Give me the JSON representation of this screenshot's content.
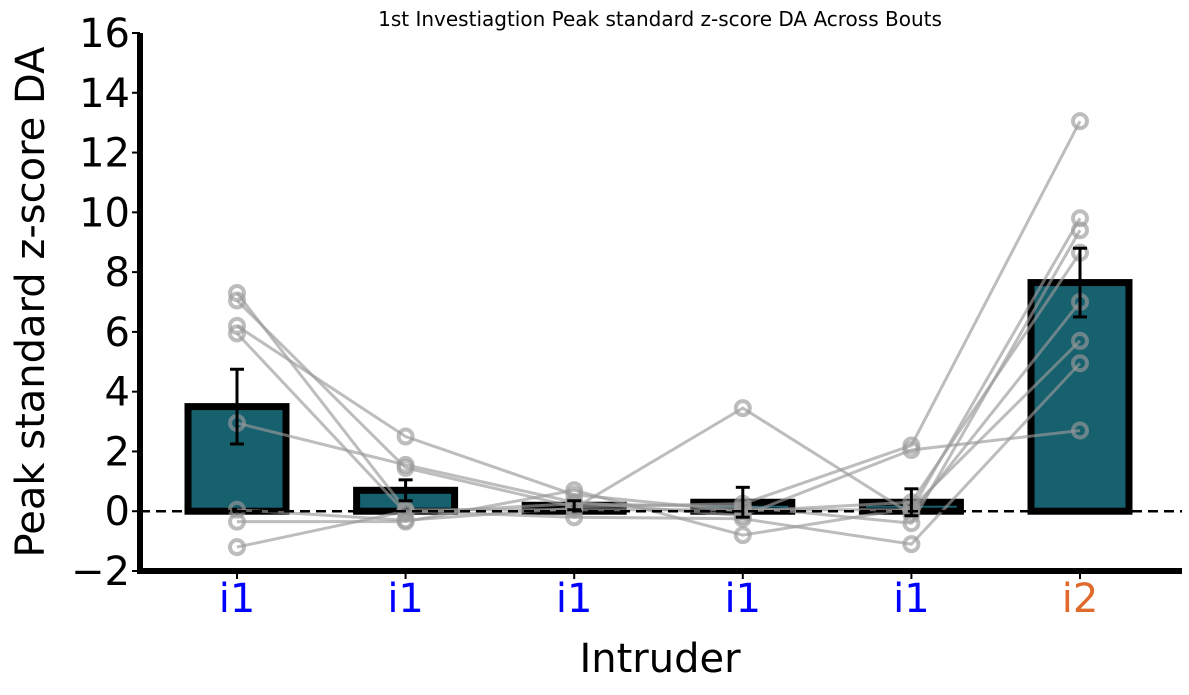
{
  "chart_data": {
    "type": "bar",
    "title": "1st Investiagtion Peak standard z-score DA Across Bouts",
    "xlabel": "Intruder",
    "ylabel": "Peak standard z-score DA",
    "ylim": [
      -2,
      16
    ],
    "yticks": [
      -2,
      0,
      2,
      4,
      6,
      8,
      10,
      12,
      14,
      16
    ],
    "ytick_labels": [
      "−2",
      "0",
      "2",
      "4",
      "6",
      "8",
      "10",
      "12",
      "14",
      "16"
    ],
    "categories": [
      "i1",
      "i1",
      "i1",
      "i1",
      "i1",
      "i2"
    ],
    "category_colors": [
      "#0000ff",
      "#0000ff",
      "#0000ff",
      "#0000ff",
      "#0000ff",
      "#e06a2c"
    ],
    "values": [
      3.5,
      0.7,
      0.2,
      0.3,
      0.3,
      7.65
    ],
    "errors": [
      1.25,
      0.35,
      0.15,
      0.5,
      0.45,
      1.15
    ],
    "bar_color": "#17606e",
    "bar_edge_color": "#000000",
    "zero_line": "dashed",
    "subjects": [
      {
        "values": [
          7.3,
          0.05,
          0.05,
          0.05,
          0.05,
          9.8
        ]
      },
      {
        "values": [
          7.05,
          1.45,
          0.15,
          0.25,
          2.2,
          13.05
        ]
      },
      {
        "values": [
          6.2,
          2.5,
          0.55,
          0.0,
          0.3,
          8.65
        ]
      },
      {
        "values": [
          5.95,
          -0.05,
          0.25,
          0.15,
          -0.4,
          9.4
        ]
      },
      {
        "values": [
          2.95,
          1.55,
          0.3,
          -0.15,
          2.05,
          2.7
        ]
      },
      {
        "values": [
          0.05,
          -0.3,
          0.1,
          3.45,
          -0.1,
          7.0
        ]
      },
      {
        "values": [
          -0.35,
          -0.35,
          0.7,
          -0.8,
          0.1,
          5.7
        ]
      },
      {
        "values": [
          -1.2,
          0.0,
          -0.2,
          -0.25,
          -1.1,
          4.95
        ]
      }
    ],
    "subject_color": "#999999",
    "grid": false
  }
}
